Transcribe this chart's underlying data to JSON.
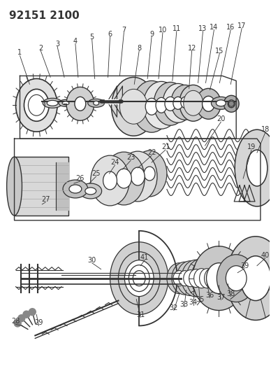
{
  "title": "92151 2100",
  "bg_color": "#ffffff",
  "line_color": "#333333",
  "fig_width": 3.88,
  "fig_height": 5.33,
  "dpi": 100
}
